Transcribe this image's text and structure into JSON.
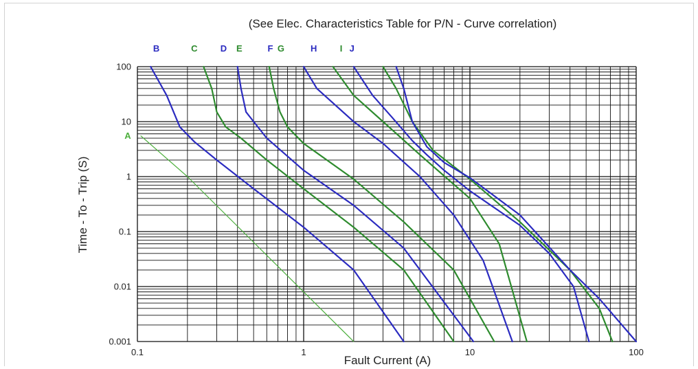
{
  "chart_data": {
    "type": "line",
    "note": "(See Elec. Characteristics Table for P/N - Curve correlation)",
    "xlabel": "Fault Current (A)",
    "ylabel": "Time - To - Trip (S)",
    "x_scale": "log",
    "y_scale": "log",
    "xlim": [
      0.1,
      100
    ],
    "ylim": [
      0.001,
      100
    ],
    "x_ticks": [
      "0.1",
      "1",
      "10",
      "100"
    ],
    "y_ticks": [
      "0.001",
      "0.01",
      "0.1",
      "1",
      "10",
      "100"
    ],
    "grid": true,
    "series": [
      {
        "name": "A",
        "color": "#4caf3c",
        "width": 1.2,
        "points": [
          [
            0.105,
            5.5
          ],
          [
            0.2,
            1.0
          ],
          [
            2.0,
            0.001
          ]
        ]
      },
      {
        "name": "B",
        "color": "#2b2bc0",
        "width": 2.2,
        "points": [
          [
            0.12,
            100
          ],
          [
            0.15,
            30
          ],
          [
            0.18,
            8.0
          ],
          [
            0.22,
            4.3
          ],
          [
            0.3,
            2.0
          ],
          [
            0.5,
            0.6
          ],
          [
            1.0,
            0.12
          ],
          [
            2.0,
            0.02
          ],
          [
            4.0,
            0.001
          ]
        ]
      },
      {
        "name": "C",
        "color": "#2e8b2e",
        "width": 2.2,
        "points": [
          [
            0.25,
            100
          ],
          [
            0.28,
            40
          ],
          [
            0.3,
            15
          ],
          [
            0.34,
            8.0
          ],
          [
            0.42,
            5.0
          ],
          [
            0.6,
            2.0
          ],
          [
            1.0,
            0.6
          ],
          [
            2.0,
            0.12
          ],
          [
            4.0,
            0.02
          ],
          [
            8.0,
            0.001
          ]
        ]
      },
      {
        "name": "D",
        "color": "#2b2bc0",
        "width": 2.2,
        "points": [
          [
            0.4,
            100
          ],
          [
            0.42,
            40
          ],
          [
            0.45,
            15
          ],
          [
            0.5,
            10
          ],
          [
            0.6,
            5.0
          ],
          [
            1.0,
            1.3
          ],
          [
            2.0,
            0.3
          ],
          [
            4.0,
            0.05
          ],
          [
            10.5,
            0.001
          ]
        ]
      },
      {
        "name": "E",
        "color": "#2e8b2e",
        "width": 2.2,
        "points": [
          [
            0.62,
            100
          ],
          [
            0.66,
            40
          ],
          [
            0.72,
            15
          ],
          [
            0.8,
            8.0
          ],
          [
            1.0,
            4.0
          ],
          [
            2.0,
            0.9
          ],
          [
            4.0,
            0.15
          ],
          [
            8.0,
            0.02
          ],
          [
            14,
            0.001
          ]
        ]
      },
      {
        "name": "H",
        "color": "#2b2bc0",
        "width": 2.2,
        "points": [
          [
            1.0,
            100
          ],
          [
            1.2,
            40
          ],
          [
            2.0,
            10
          ],
          [
            3.0,
            4.0
          ],
          [
            5.0,
            1.0
          ],
          [
            8.0,
            0.2
          ],
          [
            12,
            0.03
          ],
          [
            18,
            0.001
          ]
        ]
      },
      {
        "name": "G",
        "color": "#2e8b2e",
        "width": 2.2,
        "points": [
          [
            1.5,
            100
          ],
          [
            2.0,
            30
          ],
          [
            3.0,
            10
          ],
          [
            5.0,
            2.5
          ],
          [
            10,
            0.4
          ],
          [
            15,
            0.06
          ],
          [
            22,
            0.001
          ]
        ]
      },
      {
        "name": "I",
        "color": "#2b2bc0",
        "width": 2.2,
        "points": [
          [
            2.0,
            100
          ],
          [
            2.6,
            30
          ],
          [
            3.4,
            12
          ],
          [
            4.5,
            4.5
          ],
          [
            5.5,
            2.5
          ],
          [
            7.0,
            1.3
          ],
          [
            10,
            0.55
          ],
          [
            20,
            0.13
          ],
          [
            30,
            0.04
          ],
          [
            42,
            0.01
          ],
          [
            52,
            0.001
          ]
        ]
      },
      {
        "name": "F",
        "color": "#2e8b2e",
        "width": 2.2,
        "points": [
          [
            3.0,
            100
          ],
          [
            3.6,
            40
          ],
          [
            4.5,
            10
          ],
          [
            6.0,
            3.0
          ],
          [
            10,
            0.9
          ],
          [
            20,
            0.15
          ],
          [
            40,
            0.02
          ],
          [
            60,
            0.004
          ],
          [
            72,
            0.001
          ]
        ]
      },
      {
        "name": "J",
        "color": "#2b2bc0",
        "width": 2.2,
        "points": [
          [
            3.6,
            100
          ],
          [
            4.0,
            40
          ],
          [
            4.5,
            10
          ],
          [
            5.5,
            3.5
          ],
          [
            7.0,
            1.8
          ],
          [
            10,
            0.95
          ],
          [
            20,
            0.2
          ],
          [
            40,
            0.02
          ],
          [
            60,
            0.006
          ],
          [
            100,
            0.001
          ]
        ]
      }
    ],
    "top_labels": [
      {
        "text": "B",
        "x": 0.13,
        "color": "#2b2bc0"
      },
      {
        "text": "C",
        "x": 0.22,
        "color": "#2e8b2e"
      },
      {
        "text": "D",
        "x": 0.33,
        "color": "#2b2bc0"
      },
      {
        "text": "E",
        "x": 0.41,
        "color": "#2e8b2e"
      },
      {
        "text": "F",
        "x": 0.63,
        "color": "#2b2bc0"
      },
      {
        "text": "G",
        "x": 0.73,
        "color": "#2e8b2e"
      },
      {
        "text": "H",
        "x": 1.15,
        "color": "#2b2bc0"
      },
      {
        "text": "I",
        "x": 1.68,
        "color": "#2e8b2e"
      },
      {
        "text": "J",
        "x": 1.95,
        "color": "#2b2bc0"
      }
    ],
    "side_label": {
      "text": "A",
      "y": 5.5,
      "color": "#4caf3c"
    }
  }
}
